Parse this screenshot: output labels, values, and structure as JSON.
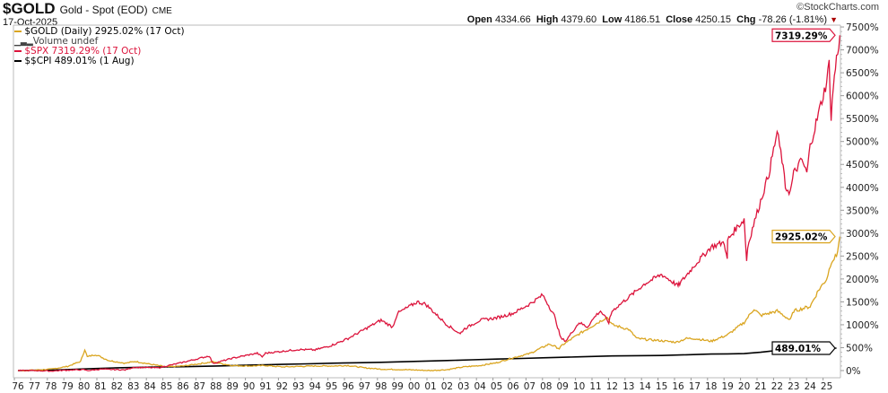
{
  "header": {
    "symbol": "$GOLD",
    "description": "Gold - Spot (EOD)",
    "exchange": "CME",
    "date": "17-Oct-2025",
    "brand": "©StockCharts.com",
    "open_label": "Open",
    "open": "4334.66",
    "high_label": "High",
    "high": "4379.60",
    "low_label": "Low",
    "low": "4186.51",
    "close_label": "Close",
    "close": "4250.15",
    "chg_label": "Chg",
    "chg": "-78.26 (-1.81%)"
  },
  "legend": [
    {
      "text": "$GOLD (Daily) 2925.02% (17 Oct)",
      "color": "#daa520",
      "text_color": "#111"
    },
    {
      "text": "Volume undef",
      "color": "#666",
      "text_color": "#444",
      "icon": "bar-chart-icon"
    },
    {
      "text": "$SPX 7319.29% (17 Oct)",
      "color": "#dc143c",
      "text_color": "#dc143c"
    },
    {
      "text": "$$CPI 489.01% (1 Aug)",
      "color": "#000000",
      "text_color": "#111"
    }
  ],
  "chart_data": {
    "type": "line",
    "xlabel": "",
    "ylabel": "",
    "ylim": [
      -150,
      7500
    ],
    "y_ticks": [
      "0%",
      "500%",
      "1000%",
      "1500%",
      "2000%",
      "2500%",
      "3000%",
      "3500%",
      "4000%",
      "4500%",
      "5000%",
      "5500%",
      "6000%",
      "6500%",
      "7000%",
      "7500%"
    ],
    "x_ticks": [
      "76",
      "77",
      "78",
      "79",
      "80",
      "81",
      "82",
      "83",
      "84",
      "85",
      "86",
      "87",
      "88",
      "89",
      "90",
      "91",
      "92",
      "93",
      "94",
      "95",
      "96",
      "97",
      "98",
      "99",
      "00",
      "01",
      "02",
      "03",
      "04",
      "05",
      "06",
      "07",
      "08",
      "09",
      "10",
      "11",
      "12",
      "13",
      "14",
      "15",
      "16",
      "17",
      "18",
      "19",
      "20",
      "21",
      "22",
      "23",
      "24",
      "25"
    ],
    "grid": false,
    "legend_position": "top-left",
    "series": [
      {
        "name": "$SPX",
        "color": "#dc143c",
        "last_label": "7319.29%",
        "x": [
          1976,
          1977,
          1978,
          1979,
          1980,
          1980.2,
          1981,
          1982.5,
          1983,
          1984.5,
          1985,
          1986,
          1987.6,
          1987.8,
          1988,
          1989,
          1990.5,
          1990.8,
          1991,
          1992,
          1993,
          1994,
          1995,
          1996,
          1997,
          1998,
          1998.7,
          1999,
          2000.2,
          2000.7,
          2001.7,
          2002,
          2002.8,
          2003,
          2004,
          2005,
          2006,
          2007,
          2007.8,
          2008.5,
          2008.9,
          2009.2,
          2009.8,
          2010,
          2010.5,
          2011,
          2011.3,
          2011.8,
          2012,
          2013,
          2014,
          2015,
          2015.6,
          2016,
          2016.1,
          2017,
          2018,
          2018.8,
          2018.98,
          2019,
          2019.5,
          2020,
          2020.15,
          2020.22,
          2020.5,
          2021,
          2021.5,
          2022,
          2022.3,
          2022.5,
          2022.8,
          2023,
          2023.5,
          2023.8,
          2024,
          2024.5,
          2025,
          2025.15,
          2025.27,
          2025.4,
          2025.6,
          2025.8
        ],
        "y": [
          0,
          0,
          -10,
          10,
          20,
          0,
          30,
          15,
          70,
          60,
          100,
          180,
          320,
          160,
          170,
          270,
          380,
          300,
          380,
          420,
          460,
          450,
          550,
          700,
          900,
          1100,
          950,
          1250,
          1500,
          1450,
          1100,
          1000,
          800,
          900,
          1100,
          1150,
          1250,
          1450,
          1650,
          1200,
          700,
          650,
          950,
          1050,
          950,
          1200,
          1300,
          1050,
          1300,
          1600,
          1900,
          2100,
          1950,
          1850,
          1900,
          2300,
          2700,
          2800,
          2400,
          2850,
          3100,
          3300,
          2400,
          2700,
          3100,
          3700,
          4300,
          5200,
          4600,
          4000,
          3900,
          4300,
          4600,
          4300,
          4900,
          5600,
          6300,
          6700,
          5500,
          6200,
          6800,
          7319.29
        ]
      },
      {
        "name": "$GOLD",
        "color": "#daa520",
        "last_label": "2925.02%",
        "x": [
          1976,
          1977,
          1978,
          1979,
          1979.8,
          1980.05,
          1980.2,
          1980.7,
          1981.5,
          1982.5,
          1983.1,
          1984,
          1985,
          1986,
          1987.8,
          1988.5,
          1989,
          1990,
          1991,
          1992,
          1993,
          1994,
          1995,
          1996,
          1997,
          1998,
          1999.5,
          2001,
          2002,
          2003,
          2004,
          2005,
          2006,
          2007,
          2008.2,
          2008.8,
          2009,
          2010,
          2011.7,
          2012,
          2013,
          2013.5,
          2014,
          2015,
          2015.9,
          2016.5,
          2017,
          2018,
          2019,
          2020,
          2020.6,
          2021,
          2022,
          2022.8,
          2023,
          2023.5,
          2024,
          2024.5,
          2025,
          2025.3,
          2025.6,
          2025.8
        ],
        "y": [
          0,
          10,
          30,
          90,
          200,
          460,
          300,
          350,
          220,
          160,
          200,
          140,
          80,
          100,
          190,
          140,
          110,
          100,
          110,
          80,
          90,
          100,
          100,
          110,
          60,
          30,
          20,
          0,
          20,
          80,
          110,
          170,
          280,
          370,
          580,
          480,
          560,
          800,
          1170,
          1000,
          900,
          700,
          680,
          650,
          620,
          700,
          700,
          640,
          780,
          1050,
          1350,
          1200,
          1300,
          1100,
          1300,
          1350,
          1400,
          1750,
          2000,
          2400,
          2500,
          2925.02
        ]
      },
      {
        "name": "$$CPI",
        "color": "#000000",
        "last_label": "489.01%",
        "x": [
          1976,
          1978,
          1980,
          1982,
          1984,
          1986,
          1988,
          1990,
          1992,
          1995,
          1998,
          2000,
          2002,
          2005,
          2008,
          2010,
          2012,
          2015,
          2018,
          2020,
          2021,
          2022,
          2023,
          2024,
          2025.6
        ],
        "y": [
          0,
          10,
          35,
          60,
          75,
          85,
          100,
          120,
          135,
          160,
          180,
          200,
          220,
          250,
          280,
          300,
          320,
          330,
          360,
          370,
          400,
          440,
          460,
          475,
          489.01
        ]
      }
    ]
  }
}
